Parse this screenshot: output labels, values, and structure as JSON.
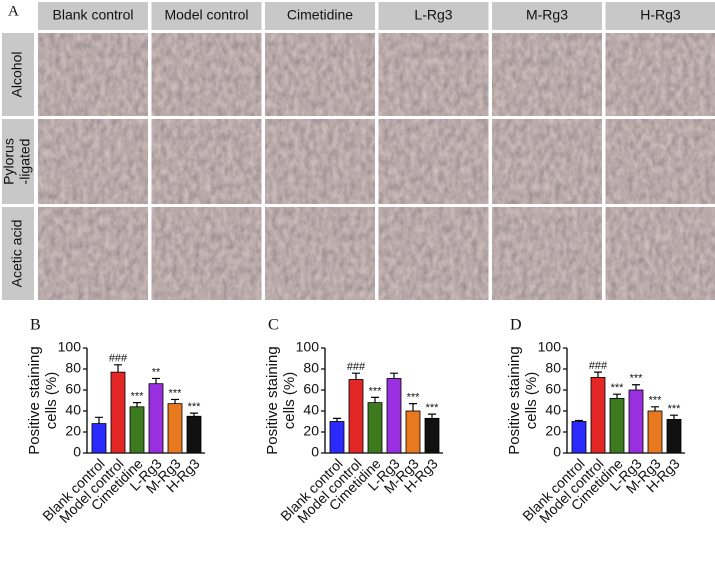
{
  "panel_a": {
    "label": "A",
    "columns": [
      "Blank control",
      "Model control",
      "Cimetidine",
      "L-Rg3",
      "M-Rg3",
      "H-Rg3"
    ],
    "rows": [
      [
        "Alcohol"
      ],
      [
        "Pylorus",
        "-ligated"
      ],
      [
        "Acetic acid"
      ]
    ]
  },
  "chart_data": [
    {
      "type": "bar",
      "panel": "B",
      "ylabel": [
        "Positive staining",
        "cells (%)"
      ],
      "categories": [
        "Blank control",
        "Model control",
        "Cimetidine",
        "L-Rg3",
        "M-Rg3",
        "H-Rg3"
      ],
      "values": [
        28,
        77,
        44,
        66,
        47,
        35
      ],
      "errors": [
        6,
        7,
        4,
        5,
        4,
        3
      ],
      "annotations": [
        null,
        "###",
        "***",
        "**",
        "***",
        "***"
      ],
      "colors": [
        "#2a2aff",
        "#e32626",
        "#3c7a1e",
        "#9a2fe0",
        "#e8791f",
        "#111111"
      ],
      "ylim": [
        0,
        100
      ],
      "yticks": [
        0,
        20,
        40,
        60,
        80,
        100
      ]
    },
    {
      "type": "bar",
      "panel": "C",
      "ylabel": [
        "Positive staining",
        "cells (%)"
      ],
      "categories": [
        "Blank control",
        "Model control",
        "Cimetidine",
        "L-Rg3",
        "M-Rg3",
        "H-Rg3"
      ],
      "values": [
        30,
        70,
        48,
        71,
        40,
        33
      ],
      "errors": [
        3,
        6,
        5,
        5,
        7,
        4
      ],
      "annotations": [
        null,
        "###",
        "***",
        null,
        "***",
        "***"
      ],
      "colors": [
        "#2a2aff",
        "#e32626",
        "#3c7a1e",
        "#9a2fe0",
        "#e8791f",
        "#111111"
      ],
      "ylim": [
        0,
        100
      ],
      "yticks": [
        0,
        20,
        40,
        60,
        80,
        100
      ]
    },
    {
      "type": "bar",
      "panel": "D",
      "ylabel": [
        "Positive staining",
        "cells (%)"
      ],
      "categories": [
        "Blank control",
        "Model control",
        "Cimetidine",
        "L-Rg3",
        "M-Rg3",
        "H-Rg3"
      ],
      "values": [
        30,
        72,
        52,
        60,
        40,
        32
      ],
      "errors": [
        1,
        5,
        4,
        5,
        4,
        4
      ],
      "annotations": [
        null,
        "###",
        "***",
        "***",
        "***",
        "***"
      ],
      "colors": [
        "#2a2aff",
        "#e32626",
        "#3c7a1e",
        "#9a2fe0",
        "#e8791f",
        "#111111"
      ],
      "ylim": [
        0,
        100
      ],
      "yticks": [
        0,
        20,
        40,
        60,
        80,
        100
      ]
    }
  ]
}
